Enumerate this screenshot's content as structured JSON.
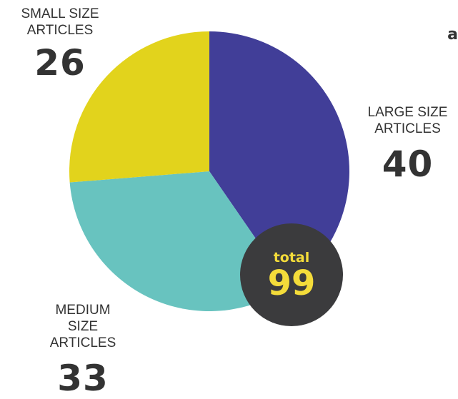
{
  "chart_data": {
    "type": "pie",
    "categories": [
      "LARGE SIZE ARTICLES",
      "MEDIUM SIZE ARTICLES",
      "SMALL SIZE ARTICLES"
    ],
    "values": [
      40,
      33,
      26
    ],
    "colors": [
      "#413e98",
      "#68c3bf",
      "#e2d31c"
    ],
    "value_labels": [
      "40",
      "33",
      "26"
    ],
    "total_label": "total",
    "total_value": "99",
    "total_badge_color": "#3b3b3d",
    "total_text_color": "#f4dc3a"
  },
  "labels": {
    "large": {
      "line1": "LARGE SIZE",
      "line2": "ARTICLES"
    },
    "medium": {
      "line1": "MEDIUM",
      "line2": "SIZE",
      "line3": "ARTICLES"
    },
    "small": {
      "line1": "SMALL SIZE",
      "line2": "ARTICLES"
    }
  },
  "cropped_text": "a"
}
